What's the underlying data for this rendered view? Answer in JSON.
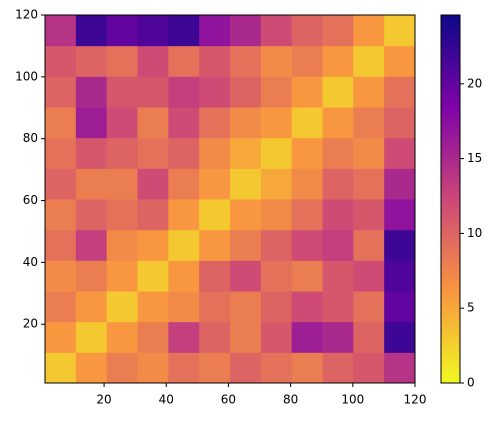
{
  "chart_data": {
    "type": "heatmap",
    "xlim": [
      1,
      120
    ],
    "ylim": [
      1,
      120
    ],
    "xticks": [
      20,
      40,
      60,
      80,
      100,
      120
    ],
    "yticks": [
      20,
      40,
      60,
      80,
      100,
      120
    ],
    "colormap": [
      "#f0f921",
      "#f89540",
      "#cc4778",
      "#7e03a8",
      "#0d0887"
    ],
    "clim": [
      0,
      24.6
    ],
    "cbar_ticks": [
      0,
      5,
      10,
      15,
      20
    ],
    "z": [
      [
        3,
        6,
        8,
        7,
        9,
        8,
        10,
        9,
        8,
        10,
        11,
        14
      ],
      [
        6,
        3,
        6,
        8,
        13,
        10,
        8,
        11,
        16,
        15,
        10,
        22
      ],
      [
        8,
        6,
        3,
        6,
        7,
        9,
        8,
        10,
        12,
        11,
        9,
        20
      ],
      [
        7,
        8,
        6,
        3,
        6,
        10,
        12,
        9,
        8,
        11,
        12,
        21
      ],
      [
        9,
        13,
        7,
        6,
        3,
        6,
        8,
        10,
        12,
        13,
        9,
        22
      ],
      [
        8,
        10,
        9,
        10,
        6,
        3,
        6,
        7,
        9,
        12,
        11,
        17
      ],
      [
        10,
        8,
        8,
        12,
        8,
        6,
        3,
        5,
        7,
        10,
        9,
        15
      ],
      [
        9,
        11,
        10,
        9,
        10,
        7,
        5,
        3,
        6,
        8,
        7,
        12
      ],
      [
        8,
        16,
        12,
        8,
        12,
        9,
        7,
        6,
        3,
        6,
        8,
        10
      ],
      [
        10,
        15,
        11,
        11,
        13,
        12,
        10,
        8,
        6,
        3,
        6,
        9
      ],
      [
        11,
        10,
        9,
        12,
        9,
        11,
        9,
        7,
        8,
        6,
        3,
        6
      ],
      [
        14,
        22,
        20,
        21,
        22,
        17,
        15,
        12,
        10,
        9,
        6,
        3
      ]
    ]
  }
}
